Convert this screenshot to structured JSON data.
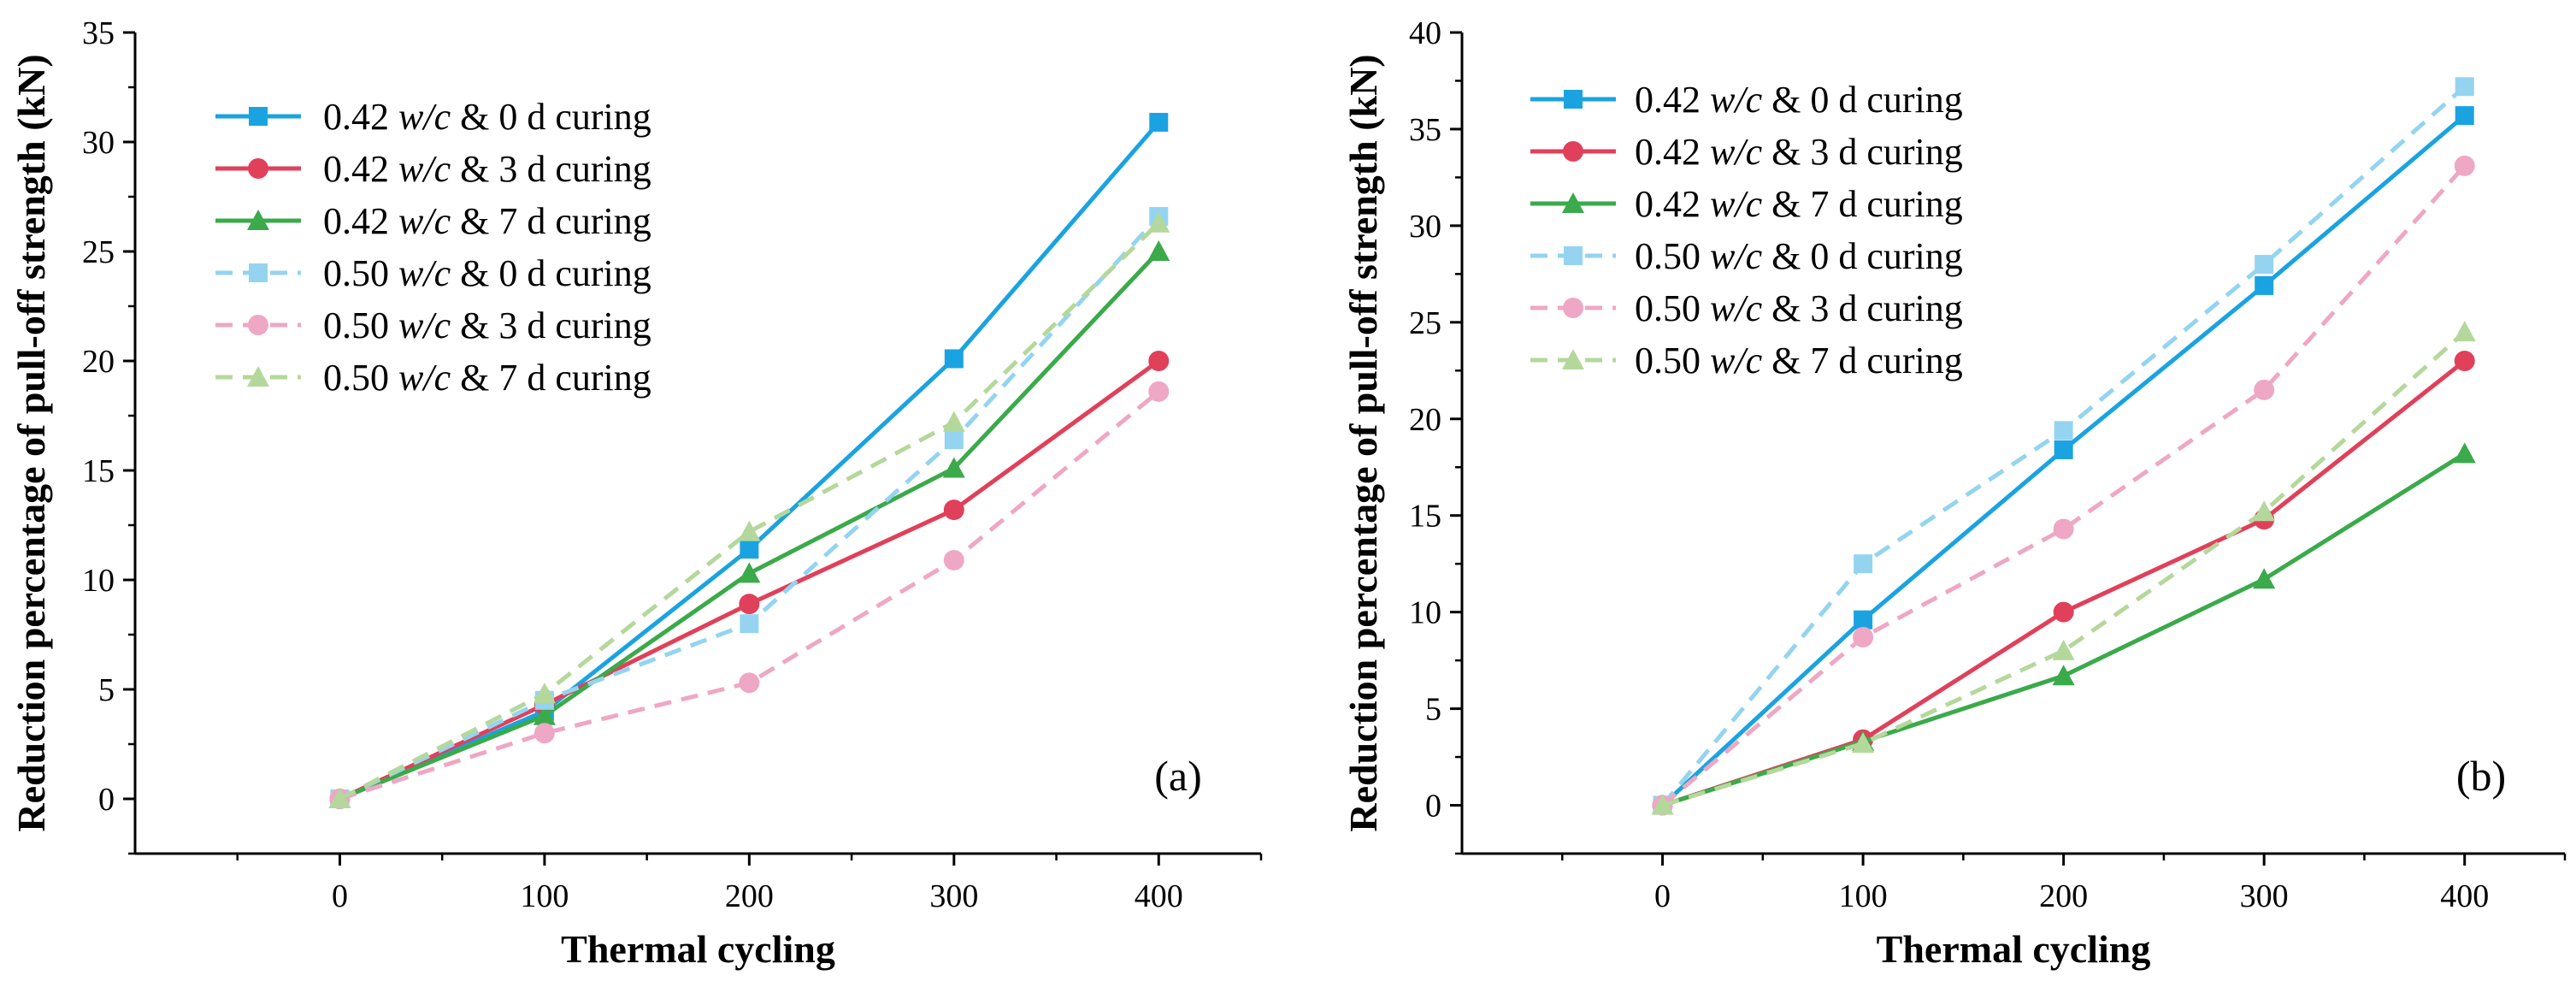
{
  "figure": {
    "background": "#ffffff"
  },
  "chart_data": [
    {
      "type": "line",
      "panel_label": "(a)",
      "xlabel": "Thermal cycling",
      "ylabel": "Reduction percentage of pull-off strength (kN)",
      "x": [
        0,
        100,
        200,
        300,
        400
      ],
      "xlim": [
        -100,
        450
      ],
      "ylim": [
        -2.5,
        35
      ],
      "xticks": [
        0,
        100,
        200,
        300,
        400
      ],
      "yticks": [
        0,
        5,
        10,
        15,
        20,
        25,
        30,
        35
      ],
      "legend_position": "top-left",
      "series": [
        {
          "prefix": "0.42 ",
          "wc": "w/c",
          "suffix": " & 0 d curing",
          "color": "#1aa3e0",
          "marker": "square",
          "dash": "solid",
          "values": [
            0,
            4.0,
            11.4,
            20.1,
            30.9
          ]
        },
        {
          "prefix": "0.42 ",
          "wc": "w/c",
          "suffix": " & 3 d curing",
          "color": "#e0405a",
          "marker": "circle",
          "dash": "solid",
          "values": [
            0,
            4.3,
            8.9,
            13.2,
            20.0
          ]
        },
        {
          "prefix": "0.42 ",
          "wc": "w/c",
          "suffix": " & 7 d curing",
          "color": "#3aaa4a",
          "marker": "triangle",
          "dash": "solid",
          "values": [
            0,
            3.8,
            10.3,
            15.1,
            25.0
          ]
        },
        {
          "prefix": "0.50 ",
          "wc": "w/c",
          "suffix": " & 0 d curing",
          "color": "#94d4f0",
          "marker": "square",
          "dash": "dashed",
          "values": [
            0,
            4.5,
            8.0,
            16.4,
            26.6
          ]
        },
        {
          "prefix": "0.50 ",
          "wc": "w/c",
          "suffix": " & 3 d curing",
          "color": "#eea7c4",
          "marker": "circle",
          "dash": "dashed",
          "values": [
            0,
            3.0,
            5.3,
            10.9,
            18.6
          ]
        },
        {
          "prefix": "0.50 ",
          "wc": "w/c",
          "suffix": " & 7 d curing",
          "color": "#b4d89b",
          "marker": "triangle",
          "dash": "dashed",
          "values": [
            0,
            4.8,
            12.2,
            17.2,
            26.3
          ]
        }
      ]
    },
    {
      "type": "line",
      "panel_label": "(b)",
      "xlabel": "Thermal cycling",
      "ylabel": "Reduction percentage of pull-off strength (kN)",
      "x": [
        0,
        100,
        200,
        300,
        400
      ],
      "xlim": [
        -100,
        450
      ],
      "ylim": [
        -2.5,
        40
      ],
      "xticks": [
        0,
        100,
        200,
        300,
        400
      ],
      "yticks": [
        0,
        5,
        10,
        15,
        20,
        25,
        30,
        35,
        40
      ],
      "legend_position": "top-left",
      "series": [
        {
          "prefix": "0.42 ",
          "wc": "w/c",
          "suffix": " & 0 d curing",
          "color": "#1aa3e0",
          "marker": "square",
          "dash": "solid",
          "values": [
            0,
            9.6,
            18.4,
            26.9,
            35.7
          ]
        },
        {
          "prefix": "0.42 ",
          "wc": "w/c",
          "suffix": " & 3 d curing",
          "color": "#e0405a",
          "marker": "circle",
          "dash": "solid",
          "values": [
            0,
            3.4,
            10.0,
            14.8,
            23.0
          ]
        },
        {
          "prefix": "0.42 ",
          "wc": "w/c",
          "suffix": " & 7 d curing",
          "color": "#3aaa4a",
          "marker": "triangle",
          "dash": "solid",
          "values": [
            0,
            3.3,
            6.7,
            11.7,
            18.2
          ]
        },
        {
          "prefix": "0.50 ",
          "wc": "w/c",
          "suffix": " & 0 d curing",
          "color": "#94d4f0",
          "marker": "square",
          "dash": "dashed",
          "values": [
            0,
            12.5,
            19.4,
            28.0,
            37.2
          ]
        },
        {
          "prefix": "0.50 ",
          "wc": "w/c",
          "suffix": " & 3 d curing",
          "color": "#eea7c4",
          "marker": "circle",
          "dash": "dashed",
          "values": [
            0,
            8.7,
            14.3,
            21.5,
            33.1
          ]
        },
        {
          "prefix": "0.50 ",
          "wc": "w/c",
          "suffix": " & 7 d curing",
          "color": "#b4d89b",
          "marker": "triangle",
          "dash": "dashed",
          "values": [
            0,
            3.2,
            8.0,
            15.2,
            24.5
          ]
        }
      ]
    }
  ]
}
